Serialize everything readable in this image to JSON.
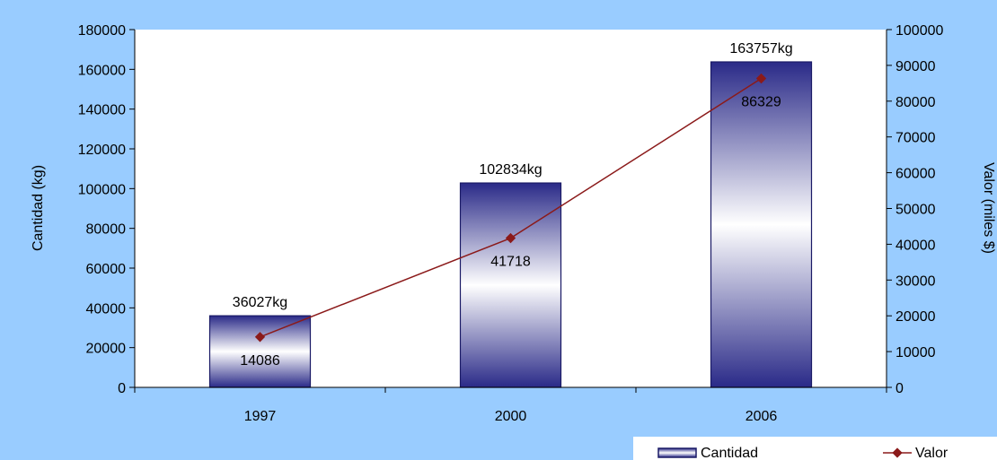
{
  "chart_data": {
    "type": "bar",
    "categories": [
      "1997",
      "2000",
      "2006"
    ],
    "series": [
      {
        "name": "Cantidad",
        "type": "bar",
        "axis": "left",
        "values": [
          36027,
          102834,
          163757
        ],
        "labels": [
          "36027kg",
          "102834kg",
          "163757kg"
        ]
      },
      {
        "name": "Valor",
        "type": "line",
        "axis": "right",
        "values": [
          14086,
          41718,
          86329
        ],
        "labels": [
          "14086",
          "41718",
          "86329"
        ]
      }
    ],
    "ylabel": "Cantidad (kg)",
    "y2label": "Valor (miles $)",
    "ylim": [
      0,
      180000
    ],
    "y2lim": [
      0,
      100000
    ],
    "yticks": [
      "0",
      "20000",
      "40000",
      "60000",
      "80000",
      "100000",
      "120000",
      "140000",
      "160000",
      "180000"
    ],
    "y2ticks": [
      "0",
      "10000",
      "20000",
      "30000",
      "40000",
      "50000",
      "60000",
      "70000",
      "80000",
      "90000",
      "100000"
    ],
    "legend_position": "bottom-right",
    "colors": {
      "background": "#99ccff",
      "plot_area": "#ffffff",
      "bar_dark": "#2e2e8a",
      "bar_light": "#ffffff",
      "line": "#8b1a1a",
      "marker": "#8b1a1a"
    }
  }
}
